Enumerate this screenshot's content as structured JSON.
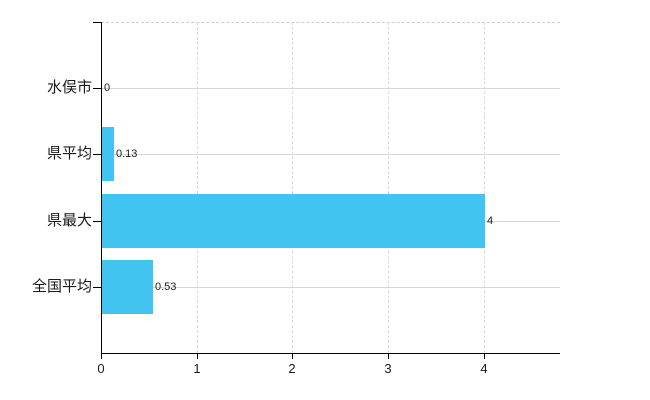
{
  "chart_data": {
    "type": "bar",
    "orientation": "horizontal",
    "title": "",
    "xlabel": "",
    "ylabel": "",
    "categories": [
      "水俣市",
      "県平均",
      "県最大",
      "全国平均"
    ],
    "values": [
      0,
      0.13,
      4,
      0.53
    ],
    "value_labels": [
      "0",
      "0.13",
      "4",
      "0.53"
    ],
    "x_ticks": [
      0,
      1,
      2,
      3,
      4
    ],
    "x_tick_labels": [
      "0",
      "1",
      "2",
      "3",
      "4"
    ],
    "xlim": [
      0,
      4.8
    ],
    "grid": "on",
    "legend_position": "none",
    "bar_color": "#42c4f0",
    "axis_color": "#000000",
    "h_grid_color": "#d3dcd3",
    "v_grid_color": "#d9d9d9",
    "top_border_color": "#c9cfc9",
    "text_color": "#1a1a1a"
  }
}
